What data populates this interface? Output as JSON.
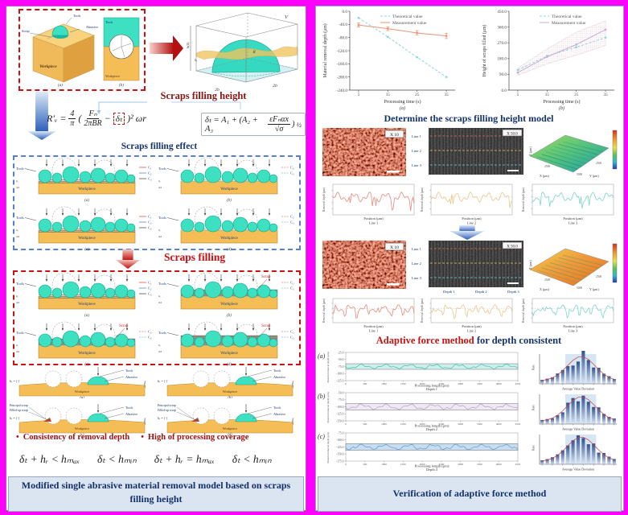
{
  "colors": {
    "magenta": "#ff00ff",
    "teal": "#3ee0c2",
    "teal_dark": "#14a188",
    "workpiece": "#f5bd55",
    "workpiece_edge": "#b8862a",
    "navy": "#16336e",
    "dark_red": "#8b1414",
    "red": "#cc1111",
    "caption_bg": "#dbe5f1"
  },
  "left_panel": {
    "block_diagram": {
      "tools": "Tools",
      "abrasive": "Abrasive",
      "scrap": "Scrap",
      "workpiece": "Workpiece",
      "sub_a": "(a)",
      "sub_b": "(b)",
      "section_tool": "Tools",
      "section_workpiece": "Workpiece"
    },
    "box3d": {
      "v": "V",
      "r": "R",
      "b_left": "2b",
      "b_right": "2b",
      "h": "h(Δ)",
      "delta": "δₜ"
    },
    "heading_filling_height": "Scraps filling height",
    "formula_main": {
      "lhs": "R′ᵥ =",
      "num1": "4",
      "den1": "π",
      "open": "(",
      "num2": "Fₙ",
      "den2": "2πBR",
      "minus": "−",
      "boxed": "δₜ",
      "close": ")²",
      "tail": "ωr"
    },
    "formula_delta": {
      "pre": "δₜ = A₁ + (A₂ + A₃",
      "num": "εFₙαx",
      "den": "√σ",
      "post": ")",
      "sup": "½"
    },
    "heading_filling_effect": "Scraps filling effect",
    "heading_scraps_filling": "Scraps filling",
    "mini": {
      "tools": "Tools",
      "workpiece": "Workpiece",
      "delta1": "δ₀",
      "delta2": "Δd"
    },
    "effect_set": {
      "subs": [
        "(a)",
        "(b)",
        "(c)",
        "(d)"
      ],
      "legends": [
        [
          "C₁",
          "C₂",
          "C₃"
        ],
        [
          "C₂",
          "C₃"
        ],
        [
          "C₁",
          "C₂",
          "C₃"
        ],
        [
          "C₂",
          "C₃"
        ]
      ],
      "variants": [
        "clean",
        "clean",
        "clean",
        "clean"
      ],
      "scrap_flags": [
        false,
        false,
        false,
        false
      ]
    },
    "filling_set": {
      "subs": [
        "(a)",
        "(b)",
        "(c)",
        "(d)"
      ],
      "legends": [
        [
          "C₁",
          "C₂",
          "C₃"
        ],
        [
          "C₂",
          "C₃"
        ],
        [
          "C₂",
          "C₃"
        ],
        [
          "C₂",
          "C₃"
        ]
      ],
      "variants": [
        "clean",
        "scrap",
        "scrap",
        "heavy"
      ],
      "scrap_flags": [
        false,
        true,
        true,
        true
      ],
      "scrap_label": "Scrap"
    },
    "wear": {
      "subs": [
        "(a)",
        "(b)",
        "(c)",
        "(d)"
      ],
      "tools": "Tools",
      "abrasive": "Abrasive",
      "workpiece": "Workpiece",
      "principal": "Principal scrap",
      "filled": "Filled-up scrap",
      "hr": "hᵣ"
    },
    "bullet_marker": "•",
    "bullets": [
      "Consistency of removal depth",
      "High of processing coverage"
    ],
    "conditions": [
      "δₜ + hᵣ < hₘₐₓ",
      "δₜ < hₘᵢₙ",
      "δₜ + hᵣ = hₘₐₓ",
      "δₜ < hₘᵢₙ"
    ],
    "caption": "Modified single abrasive material removal model based on scraps filling height"
  },
  "right_panel": {
    "heading_determine": "Determine the scraps filling height model",
    "heading_adaptive_red": "Adaptive force method",
    "heading_adaptive_navy": " for depth consistent",
    "caption": "Verification of adaptive force method",
    "micro": {
      "mag_low": "X 10",
      "mag_high": "X 50.0",
      "lines": [
        "Line 1",
        "Line 2",
        "Line 3"
      ],
      "depths": [
        "Depth 1",
        "Depth 2",
        "Depth 3"
      ],
      "map_x": "X (μm)",
      "map_y": "Y (μm)",
      "map_z": "Z (μm)",
      "tick1": "2500",
      "tick2": "5000"
    },
    "profiles": {
      "ylabel": "Removal depth (μm)",
      "xlabel": "Position (μm)",
      "subs": [
        "Line 1",
        "Line 2",
        "Line 3"
      ]
    },
    "hist": {
      "ylabel": "Rate",
      "xlabel": "Average Value Deviation"
    }
  },
  "chart_data": [
    {
      "id": "material-removal-depth",
      "type": "line",
      "x": [
        5,
        15,
        25,
        35
      ],
      "xlabel": "Processing time (s)",
      "ylabel": "Material removal depth (μm)",
      "sublabel": "(a)",
      "ylim": [
        -240,
        0
      ],
      "yticks": [
        0,
        -40,
        -80,
        -120,
        -160,
        -200,
        -240
      ],
      "xticks": [
        5,
        15,
        25,
        35
      ],
      "legend_position": "top",
      "grid": false,
      "series": [
        {
          "name": "Theoretical value",
          "color": "#8ed4e0",
          "style": "dashed",
          "values": [
            -20,
            -78,
            -140,
            -200
          ]
        },
        {
          "name": "Measurement value",
          "color": "#ef9272",
          "style": "solid",
          "values": [
            -42,
            -53,
            -66,
            -75
          ],
          "error": [
            6,
            6,
            7,
            8
          ]
        }
      ]
    },
    {
      "id": "scraps-filling-height",
      "type": "line",
      "x": [
        5,
        15,
        25,
        35
      ],
      "xlabel": "Processing time (s)",
      "ylabel": "Height of scraps filled (μm)",
      "sublabel": "(b)",
      "ylim": [
        0,
        450
      ],
      "yticks": [
        450,
        360,
        270,
        180,
        90,
        0
      ],
      "xticks": [
        5,
        15,
        25,
        35
      ],
      "legend_position": "top",
      "grid": false,
      "series": [
        {
          "name": "Theoretical value",
          "color": "#8ed4e0",
          "style": "dashed",
          "values": [
            115,
            195,
            245,
            300
          ]
        },
        {
          "name": "Measurement value",
          "color": "#c4aed6",
          "style": "solid",
          "values": [
            100,
            190,
            260,
            345
          ],
          "band_lower": [
            85,
            150,
            200,
            255
          ],
          "band_upper": [
            125,
            235,
            330,
            395
          ]
        }
      ]
    },
    {
      "id": "depth-1",
      "type": "line",
      "row_label": "(a)",
      "sub": "Depth 1",
      "xlabel": "Processing length (μm)",
      "ylabel": "Material removal depth (μm)",
      "ylim": [
        -125,
        -25
      ],
      "yticks": [
        -25,
        -50,
        -75,
        -100,
        -125
      ],
      "xticks": [
        0,
        500,
        1000,
        1500,
        2000,
        2500,
        3000,
        3500,
        4000,
        4500
      ],
      "band": [
        -65,
        -85
      ],
      "mean": -75,
      "band_fill": "#cdeeea",
      "line_color": "#3fc4b4"
    },
    {
      "id": "depth-2",
      "type": "line",
      "row_label": "(b)",
      "sub": "Depth 2",
      "xlabel": "Processing length (μm)",
      "ylabel": "Material removal depth (μm)",
      "ylim": [
        -150,
        -50
      ],
      "yticks": [
        -50,
        -75,
        -100,
        -125,
        -150
      ],
      "xticks": [
        0,
        500,
        1000,
        1500,
        2000,
        2500,
        3000,
        3500,
        4000,
        4500
      ],
      "band": [
        -88,
        -112
      ],
      "mean": -100,
      "band_fill": "#efe9f4",
      "line_color": "#b4a0c8"
    },
    {
      "id": "depth-3",
      "type": "line",
      "row_label": "(c)",
      "sub": "Depth 3",
      "xlabel": "Processing length (μm)",
      "ylabel": "Material removal depth (μm)",
      "ylim": [
        -175,
        -75
      ],
      "yticks": [
        -75,
        -100,
        -125,
        -150,
        -175
      ],
      "xticks": [
        0,
        500,
        1000,
        1500,
        2000,
        2500,
        3000,
        3500,
        4000,
        4500
      ],
      "band": [
        -113,
        -137
      ],
      "mean": -125,
      "band_fill": "#c9ddf0",
      "line_color": "#5b9bd5"
    }
  ]
}
